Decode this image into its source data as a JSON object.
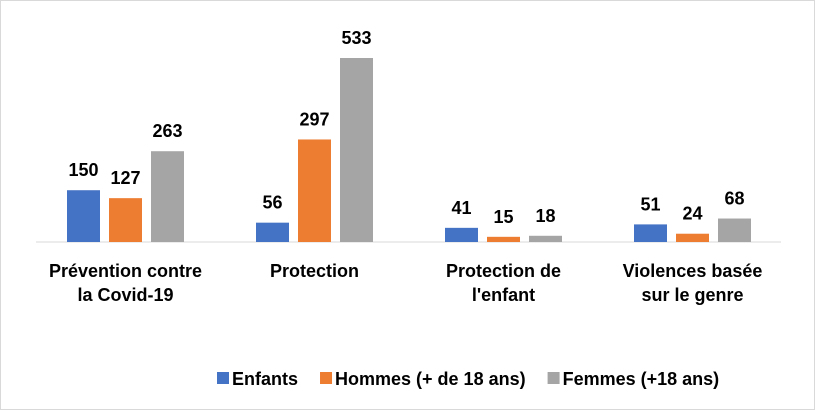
{
  "chart_data": {
    "type": "bar",
    "categories": [
      "Prévention contre la Covid-19",
      "Protection",
      "Protection de l'enfant",
      "Violences basée sur le genre"
    ],
    "series": [
      {
        "name": "Enfants",
        "color": "#4472c4",
        "values": [
          150,
          56,
          41,
          51
        ]
      },
      {
        "name": "Hommes (+ de 18 ans)",
        "color": "#ed7d31",
        "values": [
          127,
          297,
          15,
          24
        ]
      },
      {
        "name": "Femmes (+18 ans)",
        "color": "#a5a5a5",
        "values": [
          263,
          533,
          18,
          68
        ]
      }
    ],
    "legend": "bottom"
  }
}
